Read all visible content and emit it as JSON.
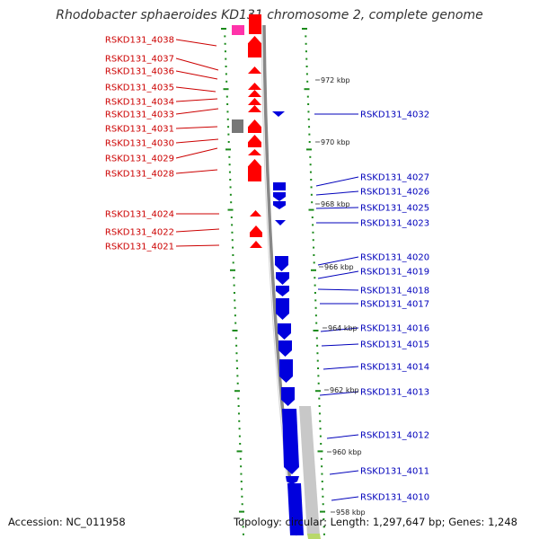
{
  "title": "Rhodobacter sphaeroides KD131 chromosome 2, complete genome",
  "accession_label": "Accession:",
  "accession": "NC_011958",
  "topology_label": "Topology:",
  "topology": "circular",
  "length_label": "Length:",
  "length": "1,297,647 bp",
  "genes_label": "Genes:",
  "genes": "1,248",
  "colors": {
    "forward_strand": "#ff0000",
    "reverse_strand": "#0000dd",
    "label_left": "#cc0000",
    "label_right": "#0000bb",
    "ruler_ticks": "#1a8a1a",
    "pseudo_gene": "#777777",
    "rna_gene": "#ff33aa",
    "backbone": "#888888",
    "region_bar": "#c8c8c8"
  },
  "kbp_markers": [
    "972 kbp",
    "970 kbp",
    "968 kbp",
    "966 kbp",
    "964 kbp",
    "962 kbp",
    "960 kbp",
    "958 kbp"
  ],
  "left_genes": [
    "RSKD131_4038",
    "RSKD131_4037",
    "RSKD131_4036",
    "RSKD131_4035",
    "RSKD131_4034",
    "RSKD131_4033",
    "RSKD131_4031",
    "RSKD131_4030",
    "RSKD131_4029",
    "RSKD131_4028",
    "RSKD131_4024",
    "RSKD131_4022",
    "RSKD131_4021"
  ],
  "right_genes": [
    "RSKD131_4032",
    "RSKD131_4027",
    "RSKD131_4026",
    "RSKD131_4025",
    "RSKD131_4023",
    "RSKD131_4020",
    "RSKD131_4019",
    "RSKD131_4018",
    "RSKD131_4017",
    "RSKD131_4016",
    "RSKD131_4015",
    "RSKD131_4014",
    "RSKD131_4013",
    "RSKD131_4012",
    "RSKD131_4011",
    "RSKD131_4010"
  ]
}
